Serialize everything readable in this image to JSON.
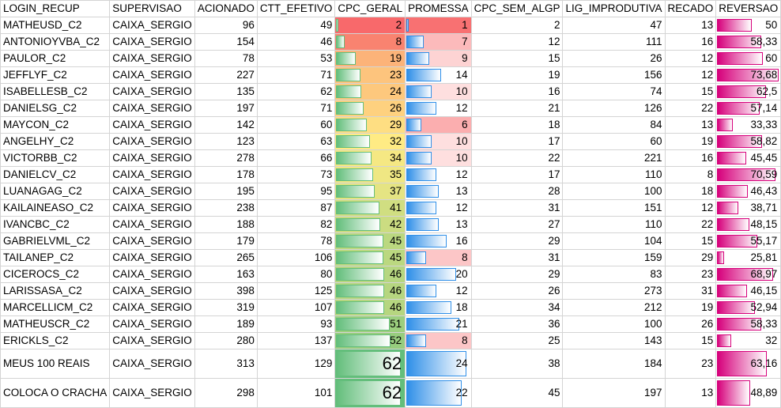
{
  "headers": [
    "LOGIN_RECUP",
    "SUPERVISAO",
    "ACIONADO",
    "CTT_EFETIVO",
    "CPC_GERAL",
    "PROMESSA",
    "CPC_SEM_ALGP",
    "LIG_IMPRODUTIVA",
    "RECADO",
    "REVERSAO"
  ],
  "rows": [
    {
      "login": "MATHEUSD_C2",
      "sup": "CAIXA_SERGIO",
      "acionado": "96",
      "ctt": "49",
      "cpc": "2",
      "prom": "1",
      "sem": "2",
      "lig": "47",
      "recado": "13",
      "rev": "50",
      "cpc_n": 2,
      "prom_n": 1,
      "rev_n": 50
    },
    {
      "login": "ANTONIOYVBA_C2",
      "sup": "CAIXA_SERGIO",
      "acionado": "154",
      "ctt": "46",
      "cpc": "8",
      "prom": "7",
      "sem": "12",
      "lig": "111",
      "recado": "16",
      "rev": "58,33",
      "cpc_n": 8,
      "prom_n": 7,
      "rev_n": 58.33
    },
    {
      "login": "PAULOR_C2",
      "sup": "CAIXA_SERGIO",
      "acionado": "78",
      "ctt": "53",
      "cpc": "19",
      "prom": "9",
      "sem": "15",
      "lig": "26",
      "recado": "12",
      "rev": "60",
      "cpc_n": 19,
      "prom_n": 9,
      "rev_n": 60
    },
    {
      "login": "JEFFLYF_C2",
      "sup": "CAIXA_SERGIO",
      "acionado": "227",
      "ctt": "71",
      "cpc": "23",
      "prom": "14",
      "sem": "19",
      "lig": "156",
      "recado": "12",
      "rev": "73,68",
      "cpc_n": 23,
      "prom_n": 14,
      "rev_n": 73.68
    },
    {
      "login": "ISABELLESB_C2",
      "sup": "CAIXA_SERGIO",
      "acionado": "135",
      "ctt": "62",
      "cpc": "24",
      "prom": "10",
      "sem": "16",
      "lig": "74",
      "recado": "15",
      "rev": "62,5",
      "cpc_n": 24,
      "prom_n": 10,
      "rev_n": 62.5
    },
    {
      "login": "DANIELSG_C2",
      "sup": "CAIXA_SERGIO",
      "acionado": "197",
      "ctt": "71",
      "cpc": "26",
      "prom": "12",
      "sem": "21",
      "lig": "126",
      "recado": "22",
      "rev": "57,14",
      "cpc_n": 26,
      "prom_n": 12,
      "rev_n": 57.14
    },
    {
      "login": "MAYCON_C2",
      "sup": "CAIXA_SERGIO",
      "acionado": "142",
      "ctt": "60",
      "cpc": "29",
      "prom": "6",
      "sem": "18",
      "lig": "84",
      "recado": "13",
      "rev": "33,33",
      "cpc_n": 29,
      "prom_n": 6,
      "rev_n": 33.33
    },
    {
      "login": "ANGELHY_C2",
      "sup": "CAIXA_SERGIO",
      "acionado": "123",
      "ctt": "63",
      "cpc": "32",
      "prom": "10",
      "sem": "17",
      "lig": "60",
      "recado": "19",
      "rev": "58,82",
      "cpc_n": 32,
      "prom_n": 10,
      "rev_n": 58.82
    },
    {
      "login": "VICTORBB_C2",
      "sup": "CAIXA_SERGIO",
      "acionado": "278",
      "ctt": "66",
      "cpc": "34",
      "prom": "10",
      "sem": "22",
      "lig": "221",
      "recado": "16",
      "rev": "45,45",
      "cpc_n": 34,
      "prom_n": 10,
      "rev_n": 45.45
    },
    {
      "login": "DANIELCV_C2",
      "sup": "CAIXA_SERGIO",
      "acionado": "178",
      "ctt": "73",
      "cpc": "35",
      "prom": "12",
      "sem": "17",
      "lig": "110",
      "recado": "8",
      "rev": "70,59",
      "cpc_n": 35,
      "prom_n": 12,
      "rev_n": 70.59
    },
    {
      "login": "LUANAGAG_C2",
      "sup": "CAIXA_SERGIO",
      "acionado": "195",
      "ctt": "95",
      "cpc": "37",
      "prom": "13",
      "sem": "28",
      "lig": "100",
      "recado": "18",
      "rev": "46,43",
      "cpc_n": 37,
      "prom_n": 13,
      "rev_n": 46.43
    },
    {
      "login": "KAILAINEASO_C2",
      "sup": "CAIXA_SERGIO",
      "acionado": "238",
      "ctt": "87",
      "cpc": "41",
      "prom": "12",
      "sem": "31",
      "lig": "151",
      "recado": "12",
      "rev": "38,71",
      "cpc_n": 41,
      "prom_n": 12,
      "rev_n": 38.71
    },
    {
      "login": "IVANCBC_C2",
      "sup": "CAIXA_SERGIO",
      "acionado": "188",
      "ctt": "82",
      "cpc": "42",
      "prom": "13",
      "sem": "27",
      "lig": "110",
      "recado": "22",
      "rev": "48,15",
      "cpc_n": 42,
      "prom_n": 13,
      "rev_n": 48.15
    },
    {
      "login": "GABRIELVML_C2",
      "sup": "CAIXA_SERGIO",
      "acionado": "179",
      "ctt": "78",
      "cpc": "45",
      "prom": "16",
      "sem": "29",
      "lig": "104",
      "recado": "15",
      "rev": "55,17",
      "cpc_n": 45,
      "prom_n": 16,
      "rev_n": 55.17
    },
    {
      "login": "TAILANEP_C2",
      "sup": "CAIXA_SERGIO",
      "acionado": "265",
      "ctt": "106",
      "cpc": "45",
      "prom": "8",
      "sem": "31",
      "lig": "159",
      "recado": "29",
      "rev": "25,81",
      "cpc_n": 45,
      "prom_n": 8,
      "rev_n": 25.81
    },
    {
      "login": "CICEROCS_C2",
      "sup": "CAIXA_SERGIO",
      "acionado": "163",
      "ctt": "80",
      "cpc": "46",
      "prom": "20",
      "sem": "29",
      "lig": "83",
      "recado": "23",
      "rev": "68,97",
      "cpc_n": 46,
      "prom_n": 20,
      "rev_n": 68.97
    },
    {
      "login": "LARISSASA_C2",
      "sup": "CAIXA_SERGIO",
      "acionado": "398",
      "ctt": "125",
      "cpc": "46",
      "prom": "12",
      "sem": "26",
      "lig": "273",
      "recado": "31",
      "rev": "46,15",
      "cpc_n": 46,
      "prom_n": 12,
      "rev_n": 46.15
    },
    {
      "login": "MARCELLICM_C2",
      "sup": "CAIXA_SERGIO",
      "acionado": "319",
      "ctt": "107",
      "cpc": "46",
      "prom": "18",
      "sem": "34",
      "lig": "212",
      "recado": "19",
      "rev": "52,94",
      "cpc_n": 46,
      "prom_n": 18,
      "rev_n": 52.94
    },
    {
      "login": "MATHEUSCR_C2",
      "sup": "CAIXA_SERGIO",
      "acionado": "189",
      "ctt": "93",
      "cpc": "51",
      "prom": "21",
      "sem": "36",
      "lig": "100",
      "recado": "26",
      "rev": "58,33",
      "cpc_n": 51,
      "prom_n": 21,
      "rev_n": 58.33
    },
    {
      "login": "ERICKLS_C2",
      "sup": "CAIXA_SERGIO",
      "acionado": "280",
      "ctt": "137",
      "cpc": "52",
      "prom": "8",
      "sem": "25",
      "lig": "143",
      "recado": "15",
      "rev": "32",
      "cpc_n": 52,
      "prom_n": 8,
      "rev_n": 32
    },
    {
      "login": "MEUS 100 REAIS",
      "sup": "CAIXA_SERGIO",
      "acionado": "313",
      "ctt": "129",
      "cpc": "62",
      "prom": "24",
      "sem": "38",
      "lig": "184",
      "recado": "23",
      "rev": "63,16",
      "cpc_n": 62,
      "prom_n": 24,
      "rev_n": 63.16,
      "tall": true
    },
    {
      "login": "COLOCA O CRACHA",
      "sup": "CAIXA_SERGIO",
      "acionado": "298",
      "ctt": "101",
      "cpc": "62",
      "prom": "22",
      "sem": "45",
      "lig": "197",
      "recado": "13",
      "rev": "48,89",
      "cpc_n": 62,
      "prom_n": 22,
      "rev_n": 48.89,
      "tall": true
    }
  ],
  "colors": {
    "scale_red": "#f8696b",
    "scale_yellow": "#ffeb84",
    "scale_green": "#63be7b",
    "prom_low": "#f8696b",
    "prom_high": "#ffffff",
    "bar_green": "#63be7b",
    "bar_blue": "#2f8fe8",
    "bar_pink": "#d6007b"
  },
  "ranges": {
    "cpc_max": 62,
    "prom_max": 24,
    "rev_max": 73.68
  }
}
